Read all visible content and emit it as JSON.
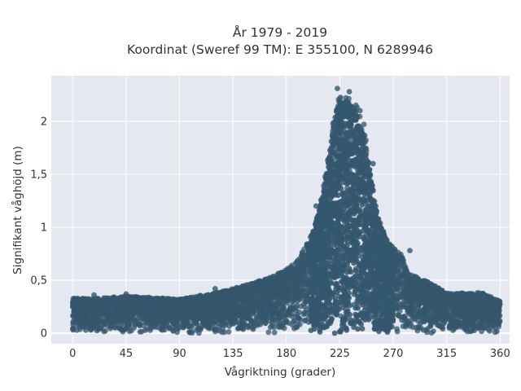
{
  "title_lines": [
    "År 1979 - 2019",
    "Koordinat (Sweref 99 TM): E 355100, N 6289946"
  ],
  "chart_data": {
    "type": "scatter",
    "title": "År 1979 - 2019",
    "subtitle": "Koordinat (Sweref 99 TM): E 355100, N 6289946",
    "xlabel": "Vågriktning (grader)",
    "ylabel": "Signifikant våghöjd (m)",
    "xlim": [
      -18,
      368
    ],
    "ylim": [
      -0.1,
      2.43
    ],
    "x_ticks": [
      0,
      45,
      90,
      135,
      180,
      225,
      270,
      315,
      360
    ],
    "x_tick_labels": [
      "0",
      "45",
      "90",
      "135",
      "180",
      "225",
      "270",
      "315",
      "360"
    ],
    "y_ticks": [
      0,
      0.5,
      1,
      1.5,
      2
    ],
    "y_tick_labels": [
      "0",
      "0,5",
      "1",
      "1,5",
      "2"
    ],
    "grid": true,
    "plot_background": "#e5e8f0",
    "marker_color": "#34576e",
    "series": [
      {
        "envelope_upper": [
          [
            0,
            0.33
          ],
          [
            20,
            0.33
          ],
          [
            45,
            0.35
          ],
          [
            90,
            0.32
          ],
          [
            120,
            0.38
          ],
          [
            135,
            0.42
          ],
          [
            150,
            0.47
          ],
          [
            165,
            0.52
          ],
          [
            180,
            0.6
          ],
          [
            190,
            0.7
          ],
          [
            200,
            0.9
          ],
          [
            210,
            1.3
          ],
          [
            215,
            1.65
          ],
          [
            220,
            2.05
          ],
          [
            225,
            2.3
          ],
          [
            230,
            2.25
          ],
          [
            235,
            2.22
          ],
          [
            240,
            2.15
          ],
          [
            245,
            2.0
          ],
          [
            250,
            1.6
          ],
          [
            255,
            1.25
          ],
          [
            260,
            1.0
          ],
          [
            265,
            0.9
          ],
          [
            270,
            0.8
          ],
          [
            275,
            0.78
          ],
          [
            285,
            0.55
          ],
          [
            300,
            0.48
          ],
          [
            315,
            0.38
          ],
          [
            330,
            0.38
          ],
          [
            345,
            0.38
          ],
          [
            360,
            0.3
          ]
        ],
        "envelope_lower": [
          [
            0,
            0.0
          ],
          [
            360,
            0.0
          ]
        ],
        "highlighted_points": [
          [
            223,
            2.31
          ],
          [
            233,
            2.28
          ],
          [
            242,
            2.1
          ],
          [
            284,
            0.78
          ],
          [
            253,
            1.6
          ],
          [
            120,
            0.42
          ],
          [
            45,
            0.37
          ],
          [
            18,
            0.36
          ],
          [
            342,
            0.38
          ],
          [
            205,
            1.2
          ]
        ]
      }
    ]
  }
}
